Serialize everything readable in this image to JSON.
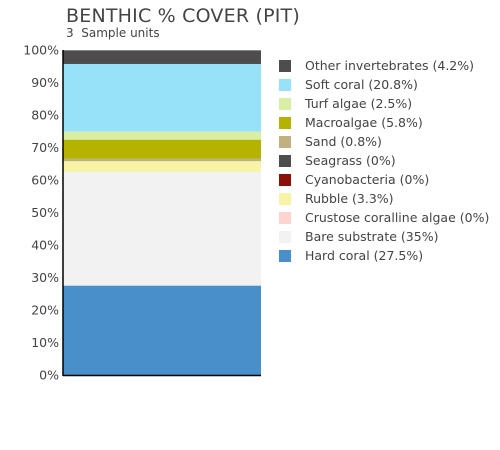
{
  "chart_data": {
    "type": "bar",
    "stacked": true,
    "title": "BENTHIC % COVER (PIT)",
    "subtitle": "3  Sample units",
    "categories": [
      ""
    ],
    "ylim": [
      0,
      100
    ],
    "yticks": [
      "0%",
      "10%",
      "20%",
      "30%",
      "40%",
      "50%",
      "60%",
      "70%",
      "80%",
      "90%",
      "100%"
    ],
    "grid": false,
    "legend_position": "right",
    "series": [
      {
        "name": "Hard coral",
        "values": [
          27.5
        ],
        "color": "#498fc9",
        "legend": "Hard coral (27.5%)"
      },
      {
        "name": "Bare substrate",
        "values": [
          35
        ],
        "color": "#f1f2f1",
        "legend": "Bare substrate (35%)"
      },
      {
        "name": "Crustose coralline algae",
        "values": [
          0
        ],
        "color": "#fed4d1",
        "legend": "Crustose coralline algae (0%)"
      },
      {
        "name": "Rubble",
        "values": [
          3.3
        ],
        "color": "#f8f4a6",
        "legend": "Rubble (3.3%)"
      },
      {
        "name": "Cyanobacteria",
        "values": [
          0
        ],
        "color": "#8b1009",
        "legend": "Cyanobacteria (0%)"
      },
      {
        "name": "Seagrass",
        "values": [
          0
        ],
        "color": "#4d4d4d",
        "legend": "Seagrass (0%)"
      },
      {
        "name": "Sand",
        "values": [
          0.8
        ],
        "color": "#c1b180",
        "legend": "Sand (0.8%)"
      },
      {
        "name": "Macroalgae",
        "values": [
          5.8
        ],
        "color": "#b6b300",
        "legend": "Macroalgae (5.8%)"
      },
      {
        "name": "Turf algae",
        "values": [
          2.5
        ],
        "color": "#d9eea4",
        "legend": "Turf algae (2.5%)"
      },
      {
        "name": "Soft coral",
        "values": [
          20.8
        ],
        "color": "#97e2f9",
        "legend": "Soft coral (20.8%)"
      },
      {
        "name": "Other invertebrates",
        "values": [
          4.2
        ],
        "color": "#4d4d4d",
        "legend": "Other invertebrates (4.2%)"
      }
    ]
  }
}
